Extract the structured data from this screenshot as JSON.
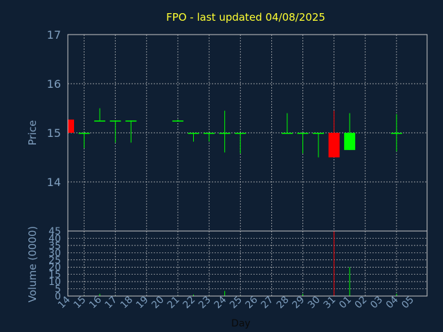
{
  "chart_data": {
    "type": "candlestick",
    "title": "FPO - last updated 04/08/2025",
    "xlabel": "Day",
    "ylabel": "Price",
    "volume_label": "Volume (0000)",
    "ylim": [
      13,
      17
    ],
    "yticks": [
      14,
      15,
      16,
      17
    ],
    "volume_ylim": [
      0,
      45
    ],
    "volume_ticks": [
      0,
      5,
      10,
      15,
      20,
      25,
      30,
      35,
      40,
      45
    ],
    "grid": true,
    "colors": {
      "background": "#0f1f33",
      "up": "#00ff00",
      "down": "#ff0000",
      "title": "#ffff33",
      "axis_text": "#7f9fbf",
      "grid": "#c8c8c8"
    },
    "days": [
      "14",
      "15",
      "16",
      "17",
      "18",
      "19",
      "20",
      "21",
      "22",
      "23",
      "24",
      "25",
      "26",
      "27",
      "28",
      "29",
      "30",
      "31",
      "01",
      "02",
      "03",
      "04",
      "05"
    ],
    "candles": [
      {
        "day": "14",
        "open": 15.27,
        "high": 15.27,
        "low": 15.0,
        "close": 15.0,
        "volume": 0
      },
      {
        "day": "15",
        "open": 15.0,
        "high": 15.0,
        "low": 14.69,
        "close": 15.0,
        "volume": 0.3
      },
      {
        "day": "16",
        "open": 15.25,
        "high": 15.5,
        "low": 15.25,
        "close": 15.25,
        "volume": 1.5
      },
      {
        "day": "17",
        "open": 15.25,
        "high": 15.25,
        "low": 14.8,
        "close": 15.25,
        "volume": 0.3
      },
      {
        "day": "18",
        "open": 15.25,
        "high": 15.25,
        "low": 14.8,
        "close": 15.25,
        "volume": 0.3
      },
      {
        "day": "21",
        "open": 15.25,
        "high": 15.27,
        "low": 15.24,
        "close": 15.25,
        "volume": 0.3
      },
      {
        "day": "22",
        "open": 15.0,
        "high": 15.0,
        "low": 14.82,
        "close": 15.0,
        "volume": 1.0
      },
      {
        "day": "23",
        "open": 15.0,
        "high": 15.0,
        "low": 14.82,
        "close": 15.0,
        "volume": 0.3
      },
      {
        "day": "24",
        "open": 15.0,
        "high": 15.45,
        "low": 14.6,
        "close": 15.0,
        "volume": 3.5
      },
      {
        "day": "25",
        "open": 15.0,
        "high": 15.0,
        "low": 14.58,
        "close": 15.0,
        "volume": 0.3
      },
      {
        "day": "28",
        "open": 15.0,
        "high": 15.4,
        "low": 15.0,
        "close": 15.0,
        "volume": 0.3
      },
      {
        "day": "29",
        "open": 15.0,
        "high": 15.0,
        "low": 14.58,
        "close": 15.0,
        "volume": 1.5
      },
      {
        "day": "30",
        "open": 15.0,
        "high": 15.0,
        "low": 14.5,
        "close": 15.0,
        "volume": 0.3
      },
      {
        "day": "31",
        "open": 15.0,
        "high": 15.45,
        "low": 14.5,
        "close": 14.5,
        "volume": 45
      },
      {
        "day": "01",
        "open": 14.65,
        "high": 15.4,
        "low": 14.65,
        "close": 15.0,
        "volume": 20
      },
      {
        "day": "04",
        "open": 15.0,
        "high": 15.38,
        "low": 14.62,
        "close": 15.0,
        "volume": 1.5
      }
    ]
  }
}
